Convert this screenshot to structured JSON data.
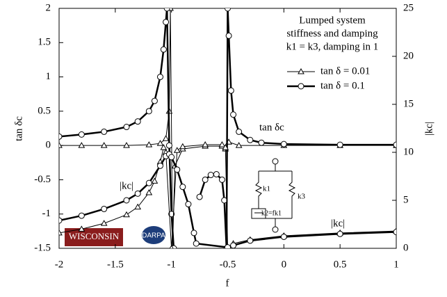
{
  "chart_data": {
    "type": "line",
    "xlabel": "f",
    "ylabel": "tan δc",
    "y2label": "|kc|",
    "xlim": [
      -2,
      1
    ],
    "ylim": [
      -1.5,
      2
    ],
    "y2lim": [
      0,
      25
    ],
    "xticks": [
      -2,
      -1.5,
      -1,
      -0.5,
      0,
      0.5,
      1
    ],
    "yticks": [
      -1.5,
      -1,
      -0.5,
      0,
      0.5,
      1,
      1.5,
      2
    ],
    "y2ticks": [
      0,
      5,
      10,
      15,
      20,
      25
    ],
    "legend": "upper right",
    "title_lines": [
      "Lumped system",
      "stiffness and damping",
      "k1 = k3, damping in 1"
    ],
    "annotations": [
      "tan δc",
      "|kc|",
      "|kc|",
      "k1",
      "k3",
      "k2=fk1"
    ],
    "logos": [
      "WISCONSIN",
      "DARPA"
    ],
    "series": [
      {
        "name": "tan δ = 0.01",
        "color": "#000000",
        "marker": "triangle",
        "linewidth": 1,
        "x": [
          -2,
          -1.8,
          -1.6,
          -1.4,
          -1.2,
          -1.1,
          -1.05,
          -1.02,
          -1.01,
          -0.99,
          -0.97,
          -0.9,
          -0.7,
          -0.55,
          -0.52,
          -0.49,
          -0.4,
          0,
          0.5,
          1
        ],
        "values": [
          0,
          0,
          0,
          0,
          0.01,
          0.03,
          0.1,
          0.5,
          2,
          -1.5,
          -0.3,
          -0.05,
          -0.01,
          -0.01,
          -0.05,
          0.05,
          0,
          0,
          0,
          0
        ]
      },
      {
        "name": "tan δ = 0.1",
        "color": "#000000",
        "marker": "circle",
        "linewidth": 2.5,
        "x": [
          -2,
          -1.8,
          -1.6,
          -1.4,
          -1.3,
          -1.2,
          -1.15,
          -1.1,
          -1.07,
          -1.05,
          -1.04,
          -1.02,
          -1.0,
          -0.98,
          -0.8,
          -0.75,
          -0.7,
          -0.65,
          -0.6,
          -0.55,
          -0.53,
          -0.51,
          -0.5,
          -0.49,
          -0.47,
          -0.45,
          -0.4,
          -0.3,
          -0.2,
          0,
          0.5,
          1
        ],
        "values": [
          0.13,
          0.16,
          0.2,
          0.27,
          0.35,
          0.5,
          0.65,
          1.0,
          1.4,
          1.8,
          2.0,
          0,
          -1.0,
          -1.5,
          null,
          -0.75,
          -0.5,
          -0.43,
          -0.42,
          -0.5,
          -0.8,
          -1.5,
          2.0,
          1.6,
          0.8,
          0.45,
          0.2,
          0.08,
          0.04,
          0.02,
          0.01,
          0.01
        ]
      },
      {
        "axis": "y2",
        "color": "#000000",
        "marker": "triangle",
        "linewidth": 1,
        "x": [
          -2,
          -1.8,
          -1.6,
          -1.4,
          -1.3,
          -1.2,
          -1.15,
          -1.1,
          -1.07,
          -1.05,
          -1.0,
          -0.95,
          -0.9,
          -0.7,
          -0.55,
          -0.52,
          -0.5,
          -0.45,
          -0.3,
          0,
          0.5,
          1
        ],
        "values": [
          1.6,
          2.0,
          2.6,
          3.5,
          4.3,
          5.8,
          7.0,
          9.0,
          10.5,
          10.0,
          0,
          10.2,
          10.6,
          10.8,
          10.8,
          10.5,
          0.1,
          0.5,
          0.9,
          1.3,
          1.6,
          1.8
        ]
      },
      {
        "axis": "y2",
        "color": "#000000",
        "marker": "circle",
        "linewidth": 2.5,
        "x": [
          -2,
          -1.8,
          -1.6,
          -1.4,
          -1.3,
          -1.2,
          -1.1,
          -1.05,
          -1.02,
          -1.0,
          -0.95,
          -0.9,
          -0.85,
          -0.8,
          -0.78,
          -0.5,
          -0.45,
          -0.3,
          0,
          0.5,
          1
        ],
        "values": [
          2.9,
          3.4,
          4.1,
          5.0,
          5.7,
          6.8,
          8.6,
          9.6,
          9.8,
          9.5,
          8.2,
          6.4,
          4.6,
          1.6,
          0.5,
          0.1,
          0.3,
          0.8,
          1.2,
          1.5,
          1.7
        ]
      }
    ]
  }
}
